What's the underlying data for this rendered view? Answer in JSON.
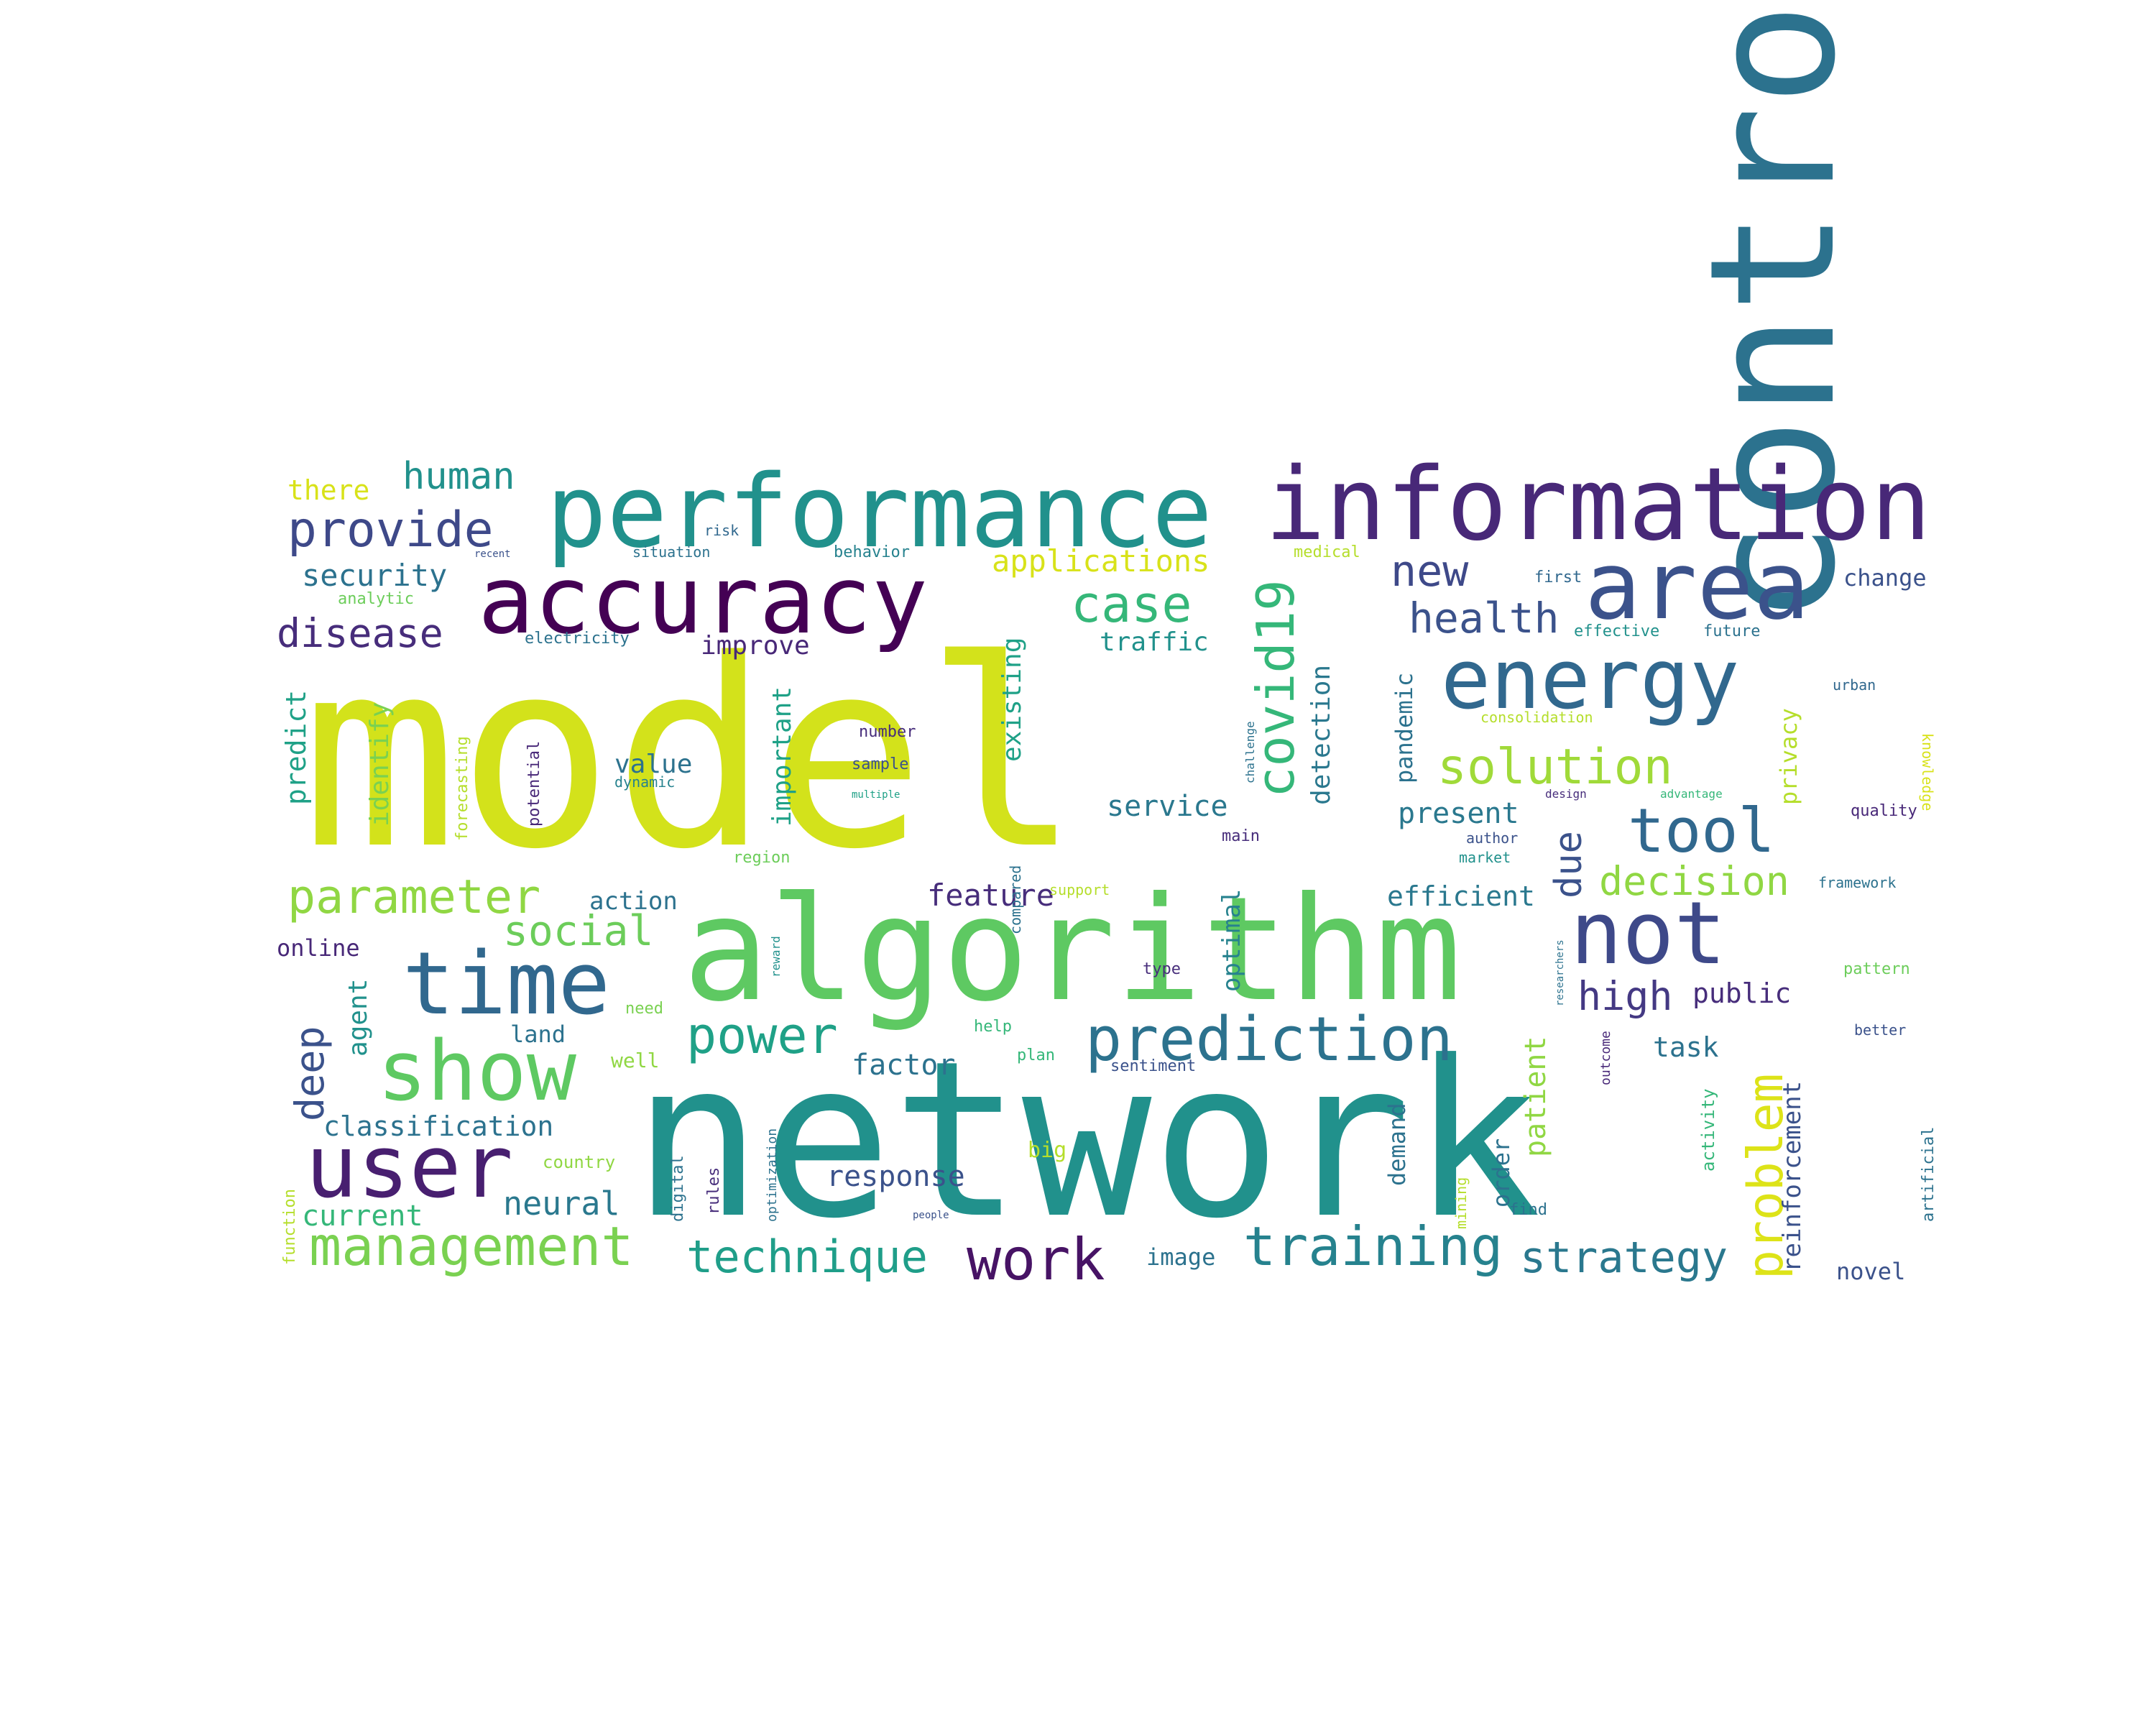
{
  "words": [
    {
      "text": "model",
      "color": "#d3e21b"
    },
    {
      "text": "network",
      "color": "#21918c"
    },
    {
      "text": "control",
      "color": "#2c728e"
    },
    {
      "text": "algorithm",
      "color": "#5ec962"
    },
    {
      "text": "performance",
      "color": "#21918c"
    },
    {
      "text": "information",
      "color": "#482878"
    },
    {
      "text": "accuracy",
      "color": "#440154"
    },
    {
      "text": "area",
      "color": "#3b528b"
    },
    {
      "text": "energy",
      "color": "#31688e"
    },
    {
      "text": "time",
      "color": "#31688e"
    },
    {
      "text": "show",
      "color": "#5ec962"
    },
    {
      "text": "user",
      "color": "#481f70"
    },
    {
      "text": "not",
      "color": "#3e4989"
    },
    {
      "text": "prediction",
      "color": "#2c728e"
    },
    {
      "text": "training",
      "color": "#26828e"
    },
    {
      "text": "management",
      "color": "#7ad151"
    },
    {
      "text": "work",
      "color": "#471365"
    },
    {
      "text": "solution",
      "color": "#a0da39"
    },
    {
      "text": "tool",
      "color": "#31688e"
    },
    {
      "text": "covid19",
      "color": "#35b779"
    },
    {
      "text": "problem",
      "color": "#dde318"
    },
    {
      "text": "provide",
      "color": "#3e4989"
    },
    {
      "text": "parameter",
      "color": "#90d743"
    },
    {
      "text": "technique",
      "color": "#1f9e89"
    },
    {
      "text": "strategy",
      "color": "#2a788e"
    },
    {
      "text": "power",
      "color": "#1fa187"
    },
    {
      "text": "case",
      "color": "#35b779"
    },
    {
      "text": "decision",
      "color": "#90d743"
    },
    {
      "text": "health",
      "color": "#3b528b"
    },
    {
      "text": "new",
      "color": "#3e4989"
    },
    {
      "text": "high",
      "color": "#443983"
    },
    {
      "text": "social",
      "color": "#6ccd5a"
    },
    {
      "text": "disease",
      "color": "#472d7b"
    },
    {
      "text": "human",
      "color": "#21918c"
    },
    {
      "text": "security",
      "color": "#2c728e"
    },
    {
      "text": "applications",
      "color": "#d8e219"
    },
    {
      "text": "there",
      "color": "#d8e219"
    },
    {
      "text": "deep",
      "color": "#3b528b"
    },
    {
      "text": "neural",
      "color": "#2a788e"
    },
    {
      "text": "current",
      "color": "#35b779"
    },
    {
      "text": "classification",
      "color": "#2c728e"
    },
    {
      "text": "response",
      "color": "#3b528b"
    },
    {
      "text": "factor",
      "color": "#2c728e"
    },
    {
      "text": "feature",
      "color": "#472d7b"
    },
    {
      "text": "service",
      "color": "#2a788e"
    },
    {
      "text": "efficient",
      "color": "#2a788e"
    },
    {
      "text": "present",
      "color": "#2a788e"
    },
    {
      "text": "public",
      "color": "#472d7b"
    },
    {
      "text": "task",
      "color": "#2c728e"
    },
    {
      "text": "due",
      "color": "#3b528b"
    },
    {
      "text": "traffic",
      "color": "#21918c"
    },
    {
      "text": "improve",
      "color": "#482878"
    },
    {
      "text": "value",
      "color": "#2c728e"
    },
    {
      "text": "action",
      "color": "#2c728e"
    },
    {
      "text": "online",
      "color": "#482878"
    },
    {
      "text": "land",
      "color": "#2c728e"
    },
    {
      "text": "agent",
      "color": "#21918c"
    },
    {
      "text": "predict",
      "color": "#1fa187"
    },
    {
      "text": "identify",
      "color": "#7ad151"
    },
    {
      "text": "important",
      "color": "#1fa187"
    },
    {
      "text": "existing",
      "color": "#1fa187"
    },
    {
      "text": "detection",
      "color": "#2a788e"
    },
    {
      "text": "optimal",
      "color": "#26828e"
    },
    {
      "text": "pandemic",
      "color": "#2c728e"
    },
    {
      "text": "demand",
      "color": "#2c728e"
    },
    {
      "text": "patient",
      "color": "#90d743"
    },
    {
      "text": "order",
      "color": "#2c728e"
    },
    {
      "text": "reinforcement",
      "color": "#3b528b"
    },
    {
      "text": "privacy",
      "color": "#b5de2b"
    },
    {
      "text": "novel",
      "color": "#3b528b"
    },
    {
      "text": "change",
      "color": "#3b528b"
    },
    {
      "text": "image",
      "color": "#2c728e"
    },
    {
      "text": "big",
      "color": "#b5de2b"
    },
    {
      "text": "well",
      "color": "#90d743"
    },
    {
      "text": "need",
      "color": "#7ad151"
    },
    {
      "text": "help",
      "color": "#35b779"
    },
    {
      "text": "plan",
      "color": "#35b779"
    },
    {
      "text": "sentiment",
      "color": "#3b528b"
    },
    {
      "text": "region",
      "color": "#6ccd5a"
    },
    {
      "text": "support",
      "color": "#b5de2b"
    },
    {
      "text": "main",
      "color": "#472d7b"
    },
    {
      "text": "type",
      "color": "#472d7b"
    },
    {
      "text": "author",
      "color": "#3b528b"
    },
    {
      "text": "market",
      "color": "#21918c"
    },
    {
      "text": "framework",
      "color": "#2c728e"
    },
    {
      "text": "quality",
      "color": "#482878"
    },
    {
      "text": "pattern",
      "color": "#6ccd5a"
    },
    {
      "text": "better",
      "color": "#3b528b"
    },
    {
      "text": "urban",
      "color": "#31688e"
    },
    {
      "text": "first",
      "color": "#31688e"
    },
    {
      "text": "effective",
      "color": "#21918c"
    },
    {
      "text": "future",
      "color": "#2c728e"
    },
    {
      "text": "consolidation",
      "color": "#b5de2b"
    },
    {
      "text": "design",
      "color": "#472d7b"
    },
    {
      "text": "advantage",
      "color": "#35b779"
    },
    {
      "text": "knowledge",
      "color": "#d8e219"
    },
    {
      "text": "behavior",
      "color": "#26828e"
    },
    {
      "text": "medical",
      "color": "#b5de2b"
    },
    {
      "text": "situation",
      "color": "#2c728e"
    },
    {
      "text": "risk",
      "color": "#31688e"
    },
    {
      "text": "recent",
      "color": "#3b528b"
    },
    {
      "text": "analytic",
      "color": "#6ccd5a"
    },
    {
      "text": "electricity",
      "color": "#2c728e"
    },
    {
      "text": "number",
      "color": "#472d7b"
    },
    {
      "text": "sample",
      "color": "#3b528b"
    },
    {
      "text": "dynamic",
      "color": "#26828e"
    },
    {
      "text": "multiple",
      "color": "#1fa187"
    },
    {
      "text": "challenge",
      "color": "#2c728e"
    },
    {
      "text": "compared",
      "color": "#2c728e"
    },
    {
      "text": "potential",
      "color": "#482878"
    },
    {
      "text": "forecasting",
      "color": "#b5de2b"
    },
    {
      "text": "function",
      "color": "#b5de2b"
    },
    {
      "text": "country",
      "color": "#90d743"
    },
    {
      "text": "digital",
      "color": "#2c728e"
    },
    {
      "text": "rules",
      "color": "#472d7b"
    },
    {
      "text": "optimization",
      "color": "#2c728e"
    },
    {
      "text": "people",
      "color": "#3b528b"
    },
    {
      "text": "find",
      "color": "#2c728e"
    },
    {
      "text": "mining",
      "color": "#b5de2b"
    },
    {
      "text": "researchers",
      "color": "#2c728e"
    },
    {
      "text": "outcome",
      "color": "#482878"
    },
    {
      "text": "activity",
      "color": "#35b779"
    },
    {
      "text": "artificial",
      "color": "#2c728e"
    },
    {
      "text": "reward",
      "color": "#21918c"
    }
  ]
}
